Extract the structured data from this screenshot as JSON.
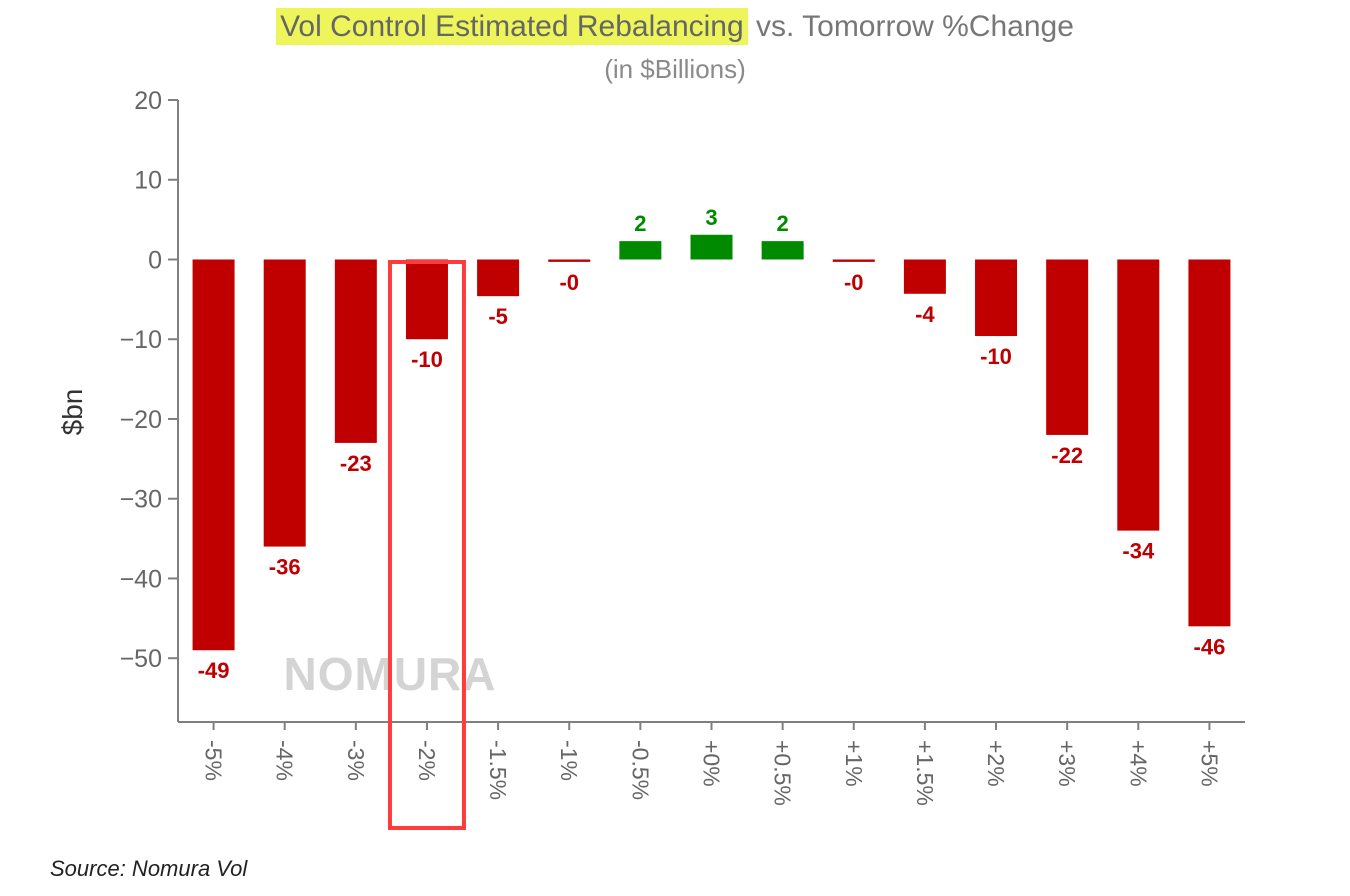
{
  "chart_data": {
    "type": "bar",
    "title_highlight": "Vol Control Estimated Rebalancing",
    "title_rest": " vs. Tomorrow %Change",
    "subtitle": "(in $Billions)",
    "ylabel": "$bn",
    "xlabel": "",
    "ylim": [
      -58,
      20
    ],
    "yticks": [
      20,
      10,
      0,
      -10,
      -20,
      -30,
      -40,
      -50
    ],
    "categories": [
      "-5%",
      "-4%",
      "-3%",
      "-2%",
      "-1.5%",
      "-1%",
      "-0.5%",
      "+0%",
      "+0.5%",
      "+1%",
      "+1.5%",
      "+2%",
      "+3%",
      "+4%",
      "+5%"
    ],
    "values": [
      -49,
      -36,
      -23,
      -10,
      -4.6,
      -0.3,
      2.3,
      3.1,
      2.3,
      -0.3,
      -4.3,
      -9.6,
      -22,
      -34,
      -46
    ],
    "labels": [
      "-49",
      "-36",
      "-23",
      "-10",
      "-5",
      "-0",
      "2",
      "3",
      "2",
      "-0",
      "-4",
      "-10",
      "-22",
      "-34",
      "-46"
    ],
    "highlighted_category": "-2%",
    "colors": {
      "negative": "#c00000",
      "positive": "#008a00",
      "highlight_box": "#ff3b3b",
      "axis": "#7f7f7f"
    },
    "watermark": "NOMURA",
    "source": "Source: Nomura Vol"
  }
}
